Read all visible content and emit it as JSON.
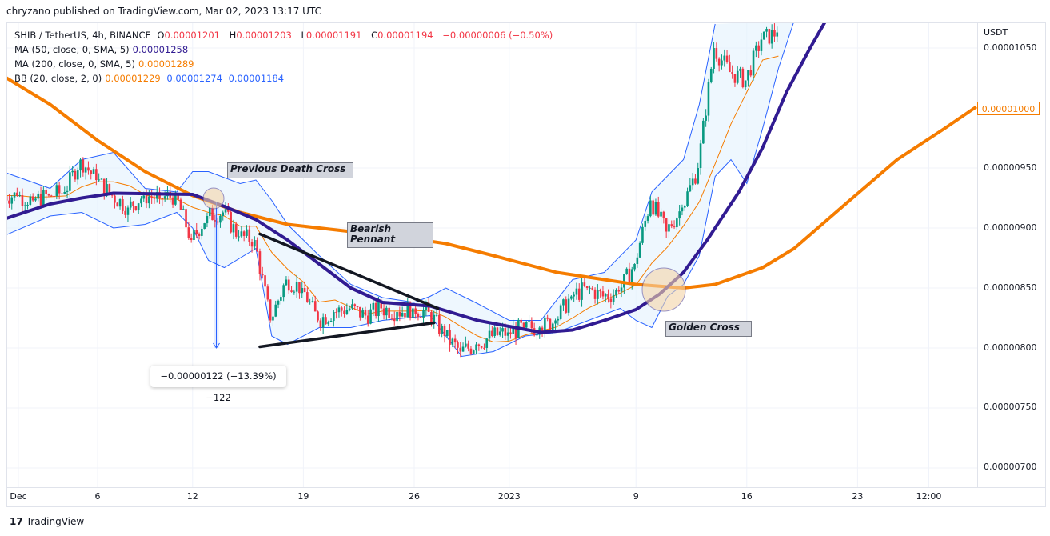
{
  "publisher_line": "chryzano published on TradingView.com, Mar 02, 2023 13:17 UTC",
  "legend": {
    "symbol": "SHIB / TetherUS, 4h, BINANCE",
    "o_label": "O",
    "o": "0.00001201",
    "h_label": "H",
    "h": "0.00001203",
    "l_label": "L",
    "l": "0.00001191",
    "c_label": "C",
    "c": "0.00001194",
    "change": "−0.00000006 (−0.50%)",
    "ma50_label": "MA (50, close, 0, SMA, 5)",
    "ma50_value": "0.00001258",
    "ma200_label": "MA (200, close, 0, SMA, 5)",
    "ma200_value": "0.00001289",
    "bb_label": "BB (20, close, 2, 0)",
    "bb_basis": "0.00001229",
    "bb_upper": "0.00001274",
    "bb_lower": "0.00001184"
  },
  "annotations": {
    "death_cross": "Previous Death Cross",
    "bearish_pennant_1": "Bearish",
    "bearish_pennant_2": "Pennant",
    "golden_cross": "Golden Cross",
    "measure": "−0.00000122 (−13.39%) −122"
  },
  "footer_brand": "TradingView",
  "chart_data": {
    "type": "candlestick",
    "title": "",
    "currency": "USDT",
    "colors": {
      "up": "#089981",
      "down": "#f23645",
      "ma50": "#311b92",
      "ma200": "#f57c00",
      "bb_band": "#2962ff",
      "bb_basis": "#f57c00",
      "bb_fill": "#e3f2fd"
    },
    "ylim": [
      6.8e-06,
      1.08e-05
    ],
    "y_ticks": [
      "0.00001050",
      "0.00000950",
      "0.00000900",
      "0.00000850",
      "0.00000800",
      "0.00000750",
      "0.00000700"
    ],
    "x_ticks": [
      {
        "date": "2022-12-01",
        "label": "Dec"
      },
      {
        "date": "2022-12-06",
        "label": "6"
      },
      {
        "date": "2022-12-12",
        "label": "12"
      },
      {
        "date": "2022-12-19",
        "label": "19"
      },
      {
        "date": "2022-12-26",
        "label": "26"
      },
      {
        "date": "2023-01-01",
        "label": "2023"
      },
      {
        "date": "2023-01-09",
        "label": "9"
      },
      {
        "date": "2023-01-16",
        "label": "16"
      },
      {
        "date": "2023-01-23",
        "label": "23"
      },
      {
        "date": "2023-01-27T12:00",
        "label": "12:00"
      }
    ],
    "last_value_label": "0.00001000",
    "closes": [
      [
        "2022-11-30",
        9.27e-06
      ],
      [
        "2022-12-01",
        9.27e-06
      ],
      [
        "2022-12-02",
        9.23e-06
      ],
      [
        "2022-12-03",
        9.27e-06
      ],
      [
        "2022-12-04",
        9.3e-06
      ],
      [
        "2022-12-05",
        9.57e-06
      ],
      [
        "2022-12-06",
        9.4e-06
      ],
      [
        "2022-12-07",
        9.27e-06
      ],
      [
        "2022-12-08",
        9.17e-06
      ],
      [
        "2022-12-09",
        9.27e-06
      ],
      [
        "2022-12-10",
        9.25e-06
      ],
      [
        "2022-12-11",
        9.27e-06
      ],
      [
        "2022-12-12",
        8.9e-06
      ],
      [
        "2022-12-13",
        9.1e-06
      ],
      [
        "2022-12-14",
        9.13e-06
      ],
      [
        "2022-12-15",
        8.93e-06
      ],
      [
        "2022-12-16",
        8.9e-06
      ],
      [
        "2022-12-17",
        8.23e-06
      ],
      [
        "2022-12-18",
        8.57e-06
      ],
      [
        "2022-12-19",
        8.5e-06
      ],
      [
        "2022-12-20",
        8.23e-06
      ],
      [
        "2022-12-21",
        8.3e-06
      ],
      [
        "2022-12-22",
        8.33e-06
      ],
      [
        "2022-12-23",
        8.27e-06
      ],
      [
        "2022-12-24",
        8.33e-06
      ],
      [
        "2022-12-25",
        8.3e-06
      ],
      [
        "2022-12-26",
        8.33e-06
      ],
      [
        "2022-12-27",
        8.3e-06
      ],
      [
        "2022-12-28",
        8.1e-06
      ],
      [
        "2022-12-29",
        7.97e-06
      ],
      [
        "2022-12-30",
        8.03e-06
      ],
      [
        "2022-12-31",
        8.1e-06
      ],
      [
        "2023-01-01",
        8.13e-06
      ],
      [
        "2023-01-02",
        8.17e-06
      ],
      [
        "2023-01-03",
        8.17e-06
      ],
      [
        "2023-01-04",
        8.23e-06
      ],
      [
        "2023-01-05",
        8.43e-06
      ],
      [
        "2023-01-06",
        8.5e-06
      ],
      [
        "2023-01-07",
        8.43e-06
      ],
      [
        "2023-01-08",
        8.47e-06
      ],
      [
        "2023-01-09",
        8.7e-06
      ],
      [
        "2023-01-10",
        9.23e-06
      ],
      [
        "2023-01-11",
        8.97e-06
      ],
      [
        "2023-01-12",
        9.17e-06
      ],
      [
        "2023-01-13",
        9.5e-06
      ],
      [
        "2023-01-14",
        1.05e-05
      ],
      [
        "2023-01-15",
        1.03e-05
      ],
      [
        "2023-01-16",
        1.023e-05
      ],
      [
        "2023-01-17",
        1.057e-05
      ],
      [
        "2023-01-18",
        1.063e-05
      ]
    ],
    "series": [
      {
        "name": "MA (50, close, 0, SMA, 5)",
        "key": "ma50",
        "points": [
          [
            "2022-11-30",
            9.07e-06
          ],
          [
            "2022-12-03",
            9.2e-06
          ],
          [
            "2022-12-05",
            9.25e-06
          ],
          [
            "2022-12-07",
            9.29e-06
          ],
          [
            "2022-12-12",
            9.28e-06
          ],
          [
            "2022-12-14",
            9.18e-06
          ],
          [
            "2022-12-16",
            9.07e-06
          ],
          [
            "2022-12-18",
            8.9e-06
          ],
          [
            "2022-12-20",
            8.7e-06
          ],
          [
            "2022-12-22",
            8.5e-06
          ],
          [
            "2022-12-24",
            8.38e-06
          ],
          [
            "2022-12-27",
            8.35e-06
          ],
          [
            "2022-12-30",
            8.23e-06
          ],
          [
            "2023-01-03",
            8.13e-06
          ],
          [
            "2023-01-05",
            8.15e-06
          ],
          [
            "2023-01-07",
            8.23e-06
          ],
          [
            "2023-01-09",
            8.32e-06
          ],
          [
            "2023-01-10T12:00",
            8.45e-06
          ],
          [
            "2023-01-12",
            8.63e-06
          ],
          [
            "2023-01-13T12:00",
            8.9e-06
          ],
          [
            "2023-01-15T12:00",
            9.3e-06
          ],
          [
            "2023-01-17",
            9.67e-06
          ],
          [
            "2023-01-18T12:00",
            1.013e-05
          ],
          [
            "2023-01-20",
            1.05e-05
          ],
          [
            "2023-01-21",
            1.073e-05
          ]
        ]
      },
      {
        "name": "MA (200, close, 0, SMA, 5)",
        "key": "ma200",
        "points": [
          [
            "2022-11-30",
            1.027e-05
          ],
          [
            "2022-12-03",
            1.003e-05
          ],
          [
            "2022-12-06",
            9.73e-06
          ],
          [
            "2022-12-09",
            9.47e-06
          ],
          [
            "2022-12-12",
            9.27e-06
          ],
          [
            "2022-12-15",
            9.13e-06
          ],
          [
            "2022-12-18",
            9.03e-06
          ],
          [
            "2022-12-22",
            8.97e-06
          ],
          [
            "2022-12-25",
            8.93e-06
          ],
          [
            "2022-12-28",
            8.87e-06
          ],
          [
            "2022-12-31",
            8.77e-06
          ],
          [
            "2023-01-04",
            8.63e-06
          ],
          [
            "2023-01-07",
            8.57e-06
          ],
          [
            "2023-01-09",
            8.53e-06
          ],
          [
            "2023-01-12",
            8.5e-06
          ],
          [
            "2023-01-14",
            8.53e-06
          ],
          [
            "2023-01-17",
            8.67e-06
          ],
          [
            "2023-01-19",
            8.83e-06
          ],
          [
            "2023-01-22T12:00",
            9.23e-06
          ],
          [
            "2023-01-25T12:00",
            9.57e-06
          ],
          [
            "2023-01-28T12:00",
            9.83e-06
          ],
          [
            "2023-01-30T12:00",
            1.001e-05
          ]
        ]
      },
      {
        "name": "BB upper",
        "key": "bb_upper",
        "points": [
          [
            "2022-11-30",
            9.47e-06
          ],
          [
            "2022-12-03",
            9.33e-06
          ],
          [
            "2022-12-05",
            9.57e-06
          ],
          [
            "2022-12-07",
            9.63e-06
          ],
          [
            "2022-12-09",
            9.33e-06
          ],
          [
            "2022-12-11",
            9.3e-06
          ],
          [
            "2022-12-12",
            9.47e-06
          ],
          [
            "2022-12-13",
            9.47e-06
          ],
          [
            "2022-12-15",
            9.37e-06
          ],
          [
            "2022-12-16",
            9.4e-06
          ],
          [
            "2022-12-17",
            9.23e-06
          ],
          [
            "2022-12-18",
            9.03e-06
          ],
          [
            "2022-12-19",
            8.9e-06
          ],
          [
            "2022-12-20",
            8.77e-06
          ],
          [
            "2022-12-22",
            8.53e-06
          ],
          [
            "2022-12-24",
            8.42e-06
          ],
          [
            "2022-12-26",
            8.38e-06
          ],
          [
            "2022-12-27",
            8.43e-06
          ],
          [
            "2022-12-28",
            8.5e-06
          ],
          [
            "2022-12-30",
            8.37e-06
          ],
          [
            "2023-01-01",
            8.23e-06
          ],
          [
            "2023-01-03",
            8.23e-06
          ],
          [
            "2023-01-05",
            8.57e-06
          ],
          [
            "2023-01-07",
            8.63e-06
          ],
          [
            "2023-01-09",
            8.9e-06
          ],
          [
            "2023-01-10",
            9.3e-06
          ],
          [
            "2023-01-12",
            9.57e-06
          ],
          [
            "2023-01-13",
            1.003e-05
          ],
          [
            "2023-01-14",
            1.07e-05
          ]
        ]
      },
      {
        "name": "BB lower",
        "key": "bb_lower",
        "points": [
          [
            "2022-11-30",
            8.93e-06
          ],
          [
            "2022-12-03",
            9.1e-06
          ],
          [
            "2022-12-05",
            9.13e-06
          ],
          [
            "2022-12-07",
            9e-06
          ],
          [
            "2022-12-09",
            9.03e-06
          ],
          [
            "2022-12-11",
            9.13e-06
          ],
          [
            "2022-12-12",
            9e-06
          ],
          [
            "2022-12-13",
            8.73e-06
          ],
          [
            "2022-12-14",
            8.67e-06
          ],
          [
            "2022-12-16",
            8.83e-06
          ],
          [
            "2022-12-17",
            8.1e-06
          ],
          [
            "2022-12-18",
            8.03e-06
          ],
          [
            "2022-12-20",
            8.17e-06
          ],
          [
            "2022-12-22",
            8.17e-06
          ],
          [
            "2022-12-24",
            8.23e-06
          ],
          [
            "2022-12-27",
            8.27e-06
          ],
          [
            "2022-12-29",
            7.93e-06
          ],
          [
            "2022-12-31",
            7.97e-06
          ],
          [
            "2023-01-02",
            8.1e-06
          ],
          [
            "2023-01-04",
            8.13e-06
          ],
          [
            "2023-01-06",
            8.23e-06
          ],
          [
            "2023-01-08",
            8.33e-06
          ],
          [
            "2023-01-09",
            8.23e-06
          ],
          [
            "2023-01-10",
            8.17e-06
          ],
          [
            "2023-01-11",
            8.43e-06
          ],
          [
            "2023-01-12",
            8.53e-06
          ],
          [
            "2023-01-13",
            8.77e-06
          ],
          [
            "2023-01-14",
            9.43e-06
          ],
          [
            "2023-01-15",
            9.57e-06
          ],
          [
            "2023-01-16",
            9.37e-06
          ],
          [
            "2023-01-17",
            9.83e-06
          ],
          [
            "2023-01-18",
            1.033e-05
          ],
          [
            "2023-01-19",
            1.073e-05
          ]
        ]
      }
    ],
    "drawings": {
      "pennant_upper": [
        [
          "2022-12-16T06:00",
          8.95e-06
        ],
        [
          "2022-12-27T12:00",
          8.33e-06
        ]
      ],
      "pennant_lower": [
        [
          "2022-12-16T06:00",
          8.01e-06
        ],
        [
          "2022-12-27T06:00",
          8.21e-06
        ]
      ],
      "measure": [
        [
          "2022-12-13T12:00",
          9.22e-06
        ],
        [
          "2022-12-13T12:00",
          8e-06
        ]
      ]
    }
  }
}
